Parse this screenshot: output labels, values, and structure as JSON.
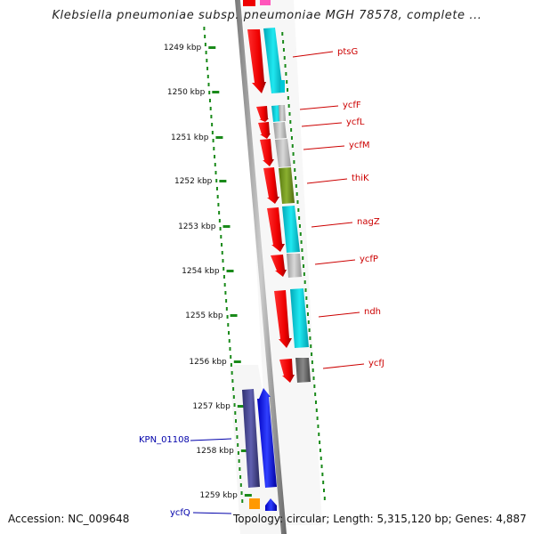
{
  "title": "Klebsiella pneumoniae subsp. pneumoniae MGH 78578, complete ...",
  "footer": {
    "accession": "Accession: NC_009648",
    "summary": "Topology: circular; Length: 5,315,120 bp; Genes: 4,887"
  },
  "scale_labels": [
    "1249 kbp",
    "1250 kbp",
    "1251 kbp",
    "1252 kbp",
    "1253 kbp",
    "1254 kbp",
    "1255 kbp",
    "1256 kbp",
    "1257 kbp",
    "1258 kbp",
    "1259 kbp"
  ],
  "genes": [
    {
      "label": "ptsG",
      "strand": "forward",
      "color": "#cc0000"
    },
    {
      "label": "ycfF",
      "strand": "forward",
      "color": "#cc0000"
    },
    {
      "label": "ycfL",
      "strand": "forward",
      "color": "#cc0000"
    },
    {
      "label": "ycfM",
      "strand": "forward",
      "color": "#cc0000"
    },
    {
      "label": "thiK",
      "strand": "forward",
      "color": "#cc0000"
    },
    {
      "label": "nagZ",
      "strand": "forward",
      "color": "#cc0000"
    },
    {
      "label": "ycfP",
      "strand": "forward",
      "color": "#cc0000"
    },
    {
      "label": "ndh",
      "strand": "forward",
      "color": "#cc0000"
    },
    {
      "label": "ycfJ",
      "strand": "forward",
      "color": "#cc0000"
    },
    {
      "label": "KPN_01108",
      "strand": "reverse",
      "color": "#0000aa"
    },
    {
      "label": "ycfQ",
      "strand": "reverse",
      "color": "#0000aa"
    }
  ]
}
